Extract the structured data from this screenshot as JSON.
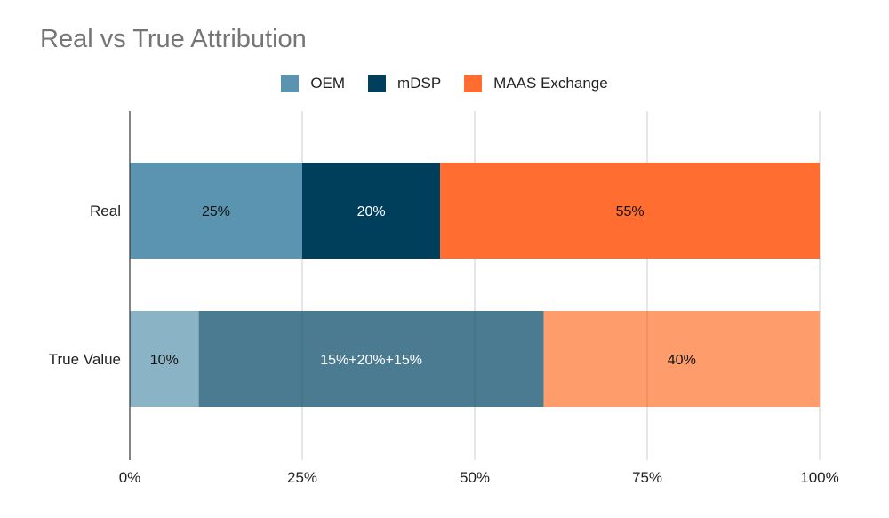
{
  "chart_data": {
    "type": "bar",
    "orientation": "horizontal",
    "stacked": true,
    "title": "Real vs True Attribution",
    "categories": [
      "Real",
      "True Value"
    ],
    "series": [
      {
        "name": "OEM",
        "values": [
          25,
          0
        ],
        "color": "#5a94b0"
      },
      {
        "name": "mDSP",
        "values": [
          20,
          0
        ],
        "color": "#003f5c"
      },
      {
        "name": "MAAS Exchange",
        "values": [
          55,
          0
        ],
        "color": "#ff6d31"
      }
    ],
    "true_value_segments": [
      {
        "value": 10,
        "label": "10%",
        "color": "#8bb3c6",
        "text_color": "#111111"
      },
      {
        "value": 50,
        "label": "15%+20%+15%",
        "color": "#4a7b91",
        "text_color": "#ffffff"
      },
      {
        "value": 40,
        "label": "40%",
        "color": "#ff9c6b",
        "text_color": "#111111"
      }
    ],
    "real_labels": [
      {
        "label": "25%",
        "text_color": "#111111"
      },
      {
        "label": "20%",
        "text_color": "#ffffff"
      },
      {
        "label": "55%",
        "text_color": "#111111"
      }
    ],
    "xlim": [
      0,
      100
    ],
    "xticks": [
      0,
      25,
      50,
      75,
      100
    ],
    "xtick_labels": [
      "0%",
      "25%",
      "50%",
      "75%",
      "100%"
    ],
    "grid": true,
    "legend_position": "top-center"
  }
}
